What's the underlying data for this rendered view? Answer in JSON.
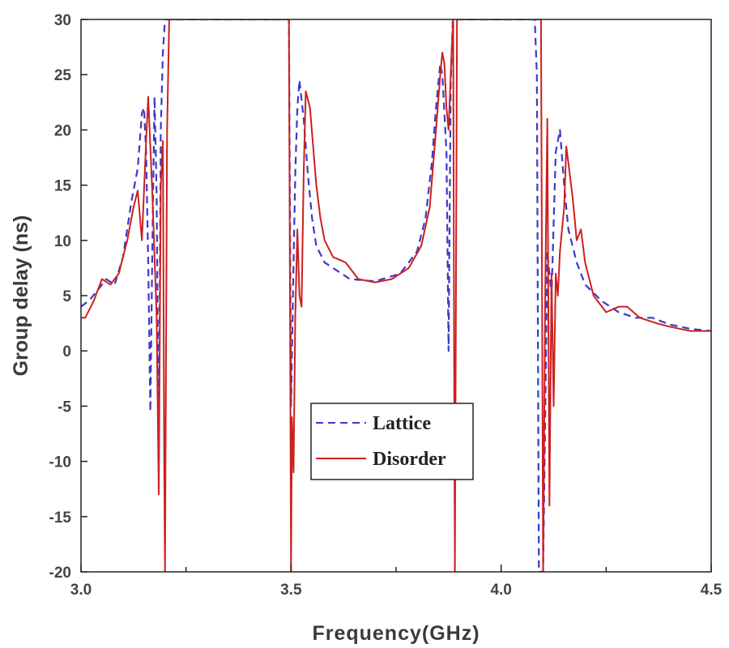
{
  "chart_data": {
    "type": "line",
    "xlabel": "Frequency(GHz)",
    "ylabel": "Group delay (ns)",
    "xlim": [
      3.0,
      4.5
    ],
    "ylim": [
      -20,
      30
    ],
    "xticks": [
      3.0,
      3.5,
      4.0,
      4.5
    ],
    "xtick_labels": [
      "3.0",
      "3.5",
      "4.0",
      "4.5"
    ],
    "xminor_ticks": [
      3.25,
      3.75,
      4.25
    ],
    "yticks": [
      30,
      25,
      20,
      15,
      10,
      5,
      0,
      -5,
      -10,
      -15,
      -20
    ],
    "ytick_labels": [
      "30",
      "25",
      "20",
      "15",
      "10",
      "5",
      "0",
      "-5",
      "-10",
      "-15",
      "-20"
    ],
    "grid": false,
    "legend_position": "center-bottom",
    "series": [
      {
        "name": "Lattice",
        "color": "#3a3acb",
        "style": "dashed",
        "points": [
          [
            3.0,
            4.0
          ],
          [
            3.02,
            4.6
          ],
          [
            3.04,
            5.5
          ],
          [
            3.06,
            6.5
          ],
          [
            3.08,
            6.0
          ],
          [
            3.1,
            8.5
          ],
          [
            3.12,
            13.5
          ],
          [
            3.135,
            16.5
          ],
          [
            3.145,
            21.5
          ],
          [
            3.15,
            22.0
          ],
          [
            3.155,
            18.0
          ],
          [
            3.16,
            8.0
          ],
          [
            3.165,
            -5.5
          ],
          [
            3.17,
            10.0
          ],
          [
            3.175,
            23.0
          ],
          [
            3.18,
            14.0
          ],
          [
            3.185,
            -10.0
          ],
          [
            3.19,
            20.0
          ],
          [
            3.195,
            27.0
          ],
          [
            3.2,
            30.0
          ],
          [
            3.21,
            30.0
          ],
          [
            3.49,
            30.0
          ],
          [
            3.495,
            30.0
          ],
          [
            3.5,
            -5.0
          ],
          [
            3.505,
            6.0
          ],
          [
            3.51,
            16.0
          ],
          [
            3.515,
            22.0
          ],
          [
            3.52,
            24.5
          ],
          [
            3.53,
            21.0
          ],
          [
            3.54,
            16.0
          ],
          [
            3.55,
            12.0
          ],
          [
            3.56,
            9.5
          ],
          [
            3.58,
            8.0
          ],
          [
            3.6,
            7.5
          ],
          [
            3.64,
            6.5
          ],
          [
            3.7,
            6.3
          ],
          [
            3.76,
            7.0
          ],
          [
            3.8,
            9.0
          ],
          [
            3.82,
            12.0
          ],
          [
            3.835,
            17.0
          ],
          [
            3.845,
            22.0
          ],
          [
            3.855,
            26.0
          ],
          [
            3.86,
            25.0
          ],
          [
            3.87,
            18.0
          ],
          [
            3.875,
            0.0
          ],
          [
            3.88,
            24.0
          ],
          [
            3.885,
            30.0
          ],
          [
            3.9,
            30.0
          ],
          [
            4.08,
            30.0
          ],
          [
            4.085,
            25.0
          ],
          [
            4.09,
            -20.0
          ],
          [
            4.1,
            -20.0
          ],
          [
            4.105,
            -6.0
          ],
          [
            4.11,
            9.0
          ],
          [
            4.12,
            5.0
          ],
          [
            4.13,
            18.0
          ],
          [
            4.14,
            20.0
          ],
          [
            4.15,
            15.0
          ],
          [
            4.16,
            11.0
          ],
          [
            4.18,
            8.0
          ],
          [
            4.2,
            6.0
          ],
          [
            4.24,
            4.5
          ],
          [
            4.28,
            3.5
          ],
          [
            4.32,
            3.0
          ],
          [
            4.36,
            3.0
          ],
          [
            4.4,
            2.4
          ],
          [
            4.45,
            2.0
          ],
          [
            4.5,
            1.8
          ]
        ]
      },
      {
        "name": "Disorder",
        "color": "#cc2020",
        "style": "solid",
        "points": [
          [
            3.0,
            3.0
          ],
          [
            3.01,
            3.0
          ],
          [
            3.03,
            4.5
          ],
          [
            3.05,
            6.5
          ],
          [
            3.07,
            6.0
          ],
          [
            3.09,
            7.0
          ],
          [
            3.11,
            10.0
          ],
          [
            3.125,
            13.0
          ],
          [
            3.135,
            14.5
          ],
          [
            3.145,
            10.0
          ],
          [
            3.155,
            19.0
          ],
          [
            3.16,
            23.0
          ],
          [
            3.17,
            14.0
          ],
          [
            3.18,
            3.0
          ],
          [
            3.185,
            -13.0
          ],
          [
            3.19,
            15.0
          ],
          [
            3.195,
            19.0
          ],
          [
            3.198,
            -10.0
          ],
          [
            3.2,
            -20.0
          ],
          [
            3.205,
            20.0
          ],
          [
            3.21,
            30.0
          ],
          [
            3.495,
            30.0
          ],
          [
            3.5,
            -20.0
          ],
          [
            3.502,
            -6.0
          ],
          [
            3.506,
            -11.0
          ],
          [
            3.51,
            3.0
          ],
          [
            3.515,
            11.0
          ],
          [
            3.52,
            5.0
          ],
          [
            3.525,
            4.0
          ],
          [
            3.53,
            16.0
          ],
          [
            3.535,
            23.5
          ],
          [
            3.545,
            22.0
          ],
          [
            3.56,
            15.0
          ],
          [
            3.57,
            12.0
          ],
          [
            3.58,
            10.0
          ],
          [
            3.6,
            8.5
          ],
          [
            3.63,
            8.0
          ],
          [
            3.66,
            6.5
          ],
          [
            3.7,
            6.2
          ],
          [
            3.74,
            6.5
          ],
          [
            3.78,
            7.5
          ],
          [
            3.81,
            9.5
          ],
          [
            3.83,
            13.0
          ],
          [
            3.845,
            20.0
          ],
          [
            3.855,
            25.0
          ],
          [
            3.86,
            27.0
          ],
          [
            3.865,
            26.0
          ],
          [
            3.87,
            22.0
          ],
          [
            3.875,
            20.0
          ],
          [
            3.882,
            27.0
          ],
          [
            3.886,
            30.0
          ],
          [
            3.888,
            0.0
          ],
          [
            3.89,
            -20.0
          ],
          [
            3.895,
            30.0
          ],
          [
            4.095,
            30.0
          ],
          [
            4.1,
            -20.0
          ],
          [
            4.105,
            5.0
          ],
          [
            4.11,
            21.0
          ],
          [
            4.115,
            -14.0
          ],
          [
            4.12,
            7.0
          ],
          [
            4.125,
            -5.0
          ],
          [
            4.13,
            7.0
          ],
          [
            4.135,
            5.0
          ],
          [
            4.14,
            9.0
          ],
          [
            4.15,
            13.0
          ],
          [
            4.155,
            18.5
          ],
          [
            4.16,
            17.0
          ],
          [
            4.17,
            14.0
          ],
          [
            4.18,
            10.0
          ],
          [
            4.19,
            11.0
          ],
          [
            4.2,
            8.0
          ],
          [
            4.22,
            5.0
          ],
          [
            4.25,
            3.5
          ],
          [
            4.28,
            4.0
          ],
          [
            4.3,
            4.0
          ],
          [
            4.33,
            3.0
          ],
          [
            4.37,
            2.5
          ],
          [
            4.4,
            2.2
          ],
          [
            4.45,
            1.8
          ],
          [
            4.5,
            1.8
          ]
        ]
      }
    ]
  }
}
